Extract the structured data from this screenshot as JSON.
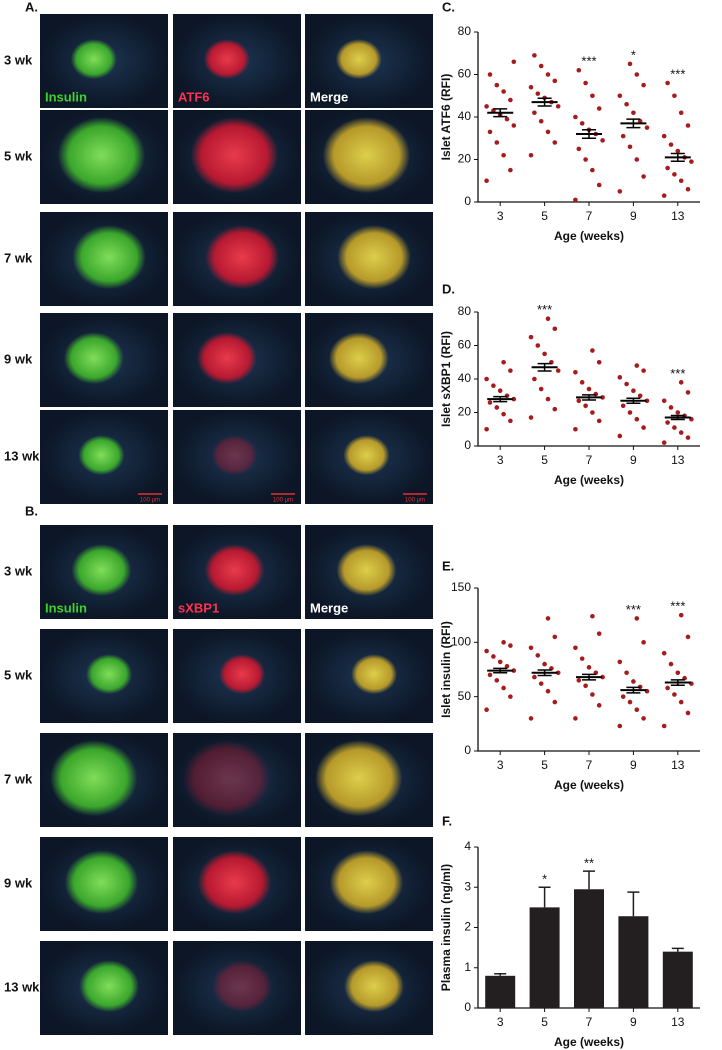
{
  "panels": [
    {
      "label": "A.",
      "rows": [
        "3 wk",
        "5 wk",
        "7 wk",
        "9 wk",
        "13 wk"
      ],
      "channels": [
        "Insulin",
        "ATF6",
        "Merge"
      ],
      "scale_bar": "100 μm"
    },
    {
      "label": "B.",
      "rows": [
        "3 wk",
        "5 wk",
        "7 wk",
        "9 wk",
        "13 wk"
      ],
      "channels": [
        "Insulin",
        "sXBP1",
        "Merge"
      ]
    }
  ],
  "chart_data": [
    {
      "type": "dot",
      "label": "C.",
      "ylabel": "Islet ATF6 (RFI)",
      "xlabel": "Age (weeks)",
      "color": "#a61b1b",
      "categories": [
        "3",
        "5",
        "7",
        "9",
        "13"
      ],
      "points": [
        [
          10,
          15,
          22,
          28,
          33,
          36,
          39,
          41,
          43,
          45,
          48,
          52,
          55,
          60,
          66
        ],
        [
          22,
          28,
          33,
          38,
          42,
          45,
          47,
          49,
          51,
          54,
          57,
          60,
          64,
          69
        ],
        [
          1,
          8,
          15,
          20,
          25,
          29,
          32,
          34,
          37,
          40,
          44,
          50,
          56,
          62
        ],
        [
          5,
          12,
          20,
          26,
          31,
          35,
          38,
          42,
          46,
          50,
          55,
          60,
          65
        ],
        [
          3,
          6,
          10,
          13,
          16,
          19,
          21,
          24,
          27,
          31,
          36,
          42,
          50,
          56
        ]
      ],
      "means": [
        42,
        47,
        32,
        37,
        21
      ],
      "sem": [
        1.8,
        1.8,
        2,
        2,
        1.8
      ],
      "annotations": [
        null,
        null,
        "***",
        "*",
        "***"
      ],
      "ylim": [
        0,
        80
      ],
      "yticks": [
        0,
        20,
        40,
        60,
        80
      ]
    },
    {
      "type": "dot",
      "label": "D.",
      "ylabel": "Islet sXBP1 (RFI)",
      "xlabel": "Age (weeks)",
      "color": "#a61b1b",
      "categories": [
        "3",
        "5",
        "7",
        "9",
        "13"
      ],
      "points": [
        [
          10,
          15,
          19,
          23,
          26,
          28,
          30,
          33,
          36,
          40,
          45,
          50
        ],
        [
          17,
          22,
          28,
          34,
          40,
          45,
          50,
          55,
          60,
          65,
          70,
          76
        ],
        [
          10,
          15,
          20,
          24,
          27,
          29,
          31,
          34,
          38,
          44,
          50,
          57
        ],
        [
          6,
          11,
          16,
          20,
          24,
          27,
          30,
          33,
          37,
          41,
          45,
          48
        ],
        [
          2,
          5,
          8,
          11,
          14,
          16,
          18,
          20,
          23,
          27,
          32,
          38
        ]
      ],
      "means": [
        28,
        47,
        29,
        27,
        17
      ],
      "sem": [
        1.5,
        2.2,
        1.5,
        1.5,
        1.2
      ],
      "annotations": [
        null,
        "***",
        null,
        null,
        "***"
      ],
      "ylim": [
        0,
        80
      ],
      "yticks": [
        0,
        20,
        40,
        60,
        80
      ]
    },
    {
      "type": "dot",
      "label": "E.",
      "ylabel": "Islet insulin (RFI)",
      "xlabel": "Age (weeks)",
      "color": "#a61b1b",
      "categories": [
        "3",
        "5",
        "7",
        "9",
        "13"
      ],
      "points": [
        [
          38,
          50,
          58,
          65,
          70,
          74,
          78,
          82,
          87,
          92,
          97,
          100
        ],
        [
          30,
          45,
          55,
          62,
          68,
          72,
          76,
          80,
          88,
          95,
          105,
          122
        ],
        [
          30,
          42,
          52,
          60,
          65,
          68,
          72,
          77,
          85,
          95,
          108,
          124
        ],
        [
          23,
          30,
          38,
          45,
          50,
          55,
          59,
          64,
          72,
          82,
          100,
          122
        ],
        [
          23,
          35,
          45,
          52,
          58,
          62,
          67,
          72,
          80,
          90,
          105,
          125
        ]
      ],
      "means": [
        74,
        72,
        68,
        56,
        63
      ],
      "sem": [
        2,
        2.5,
        2.5,
        2.5,
        2.5
      ],
      "annotations": [
        null,
        null,
        null,
        "***",
        "***"
      ],
      "ylim": [
        0,
        150
      ],
      "yticks": [
        0,
        50,
        100,
        150
      ]
    },
    {
      "type": "bar",
      "label": "F.",
      "ylabel": "Plasma insulin (ng/ml)",
      "xlabel": "Age (weeks)",
      "color": "#231f20",
      "categories": [
        "3",
        "5",
        "7",
        "9",
        "13"
      ],
      "values": [
        0.8,
        2.5,
        2.95,
        2.28,
        1.4
      ],
      "errors": [
        0.05,
        0.5,
        0.45,
        0.6,
        0.08
      ],
      "annotations": [
        null,
        "*",
        "**",
        null,
        null
      ],
      "ylim": [
        0,
        4
      ],
      "yticks": [
        0,
        1,
        2,
        3,
        4
      ]
    }
  ]
}
